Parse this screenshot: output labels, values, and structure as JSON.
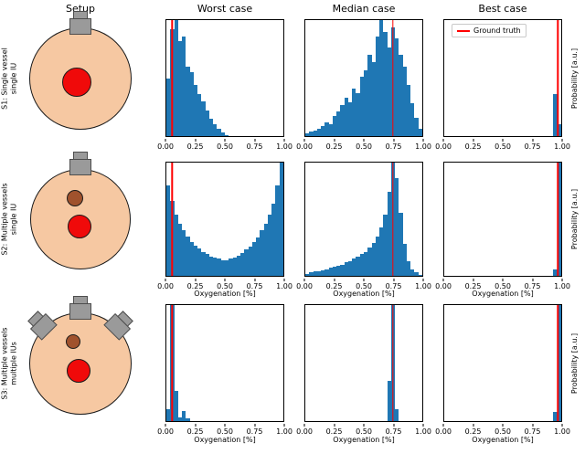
{
  "figure": {
    "column_headers": [
      "Setup",
      "Worst case",
      "Median case",
      "Best case"
    ],
    "row_labels": [
      "S1: Single vessel\nsingle IU",
      "S2: Multiple vessels\nsingle IU",
      "S3: Multiple vessels\nmultiple IUs"
    ],
    "xlabel": "Oxygenation [%]",
    "ylabel_right": "Probability [a.u.]",
    "legend_label": "Ground truth",
    "x_ticks": [
      "0.00",
      "0.25",
      "0.50",
      "0.75",
      "1.00"
    ],
    "colors": {
      "bar": "#1f77b4",
      "ground_truth": "#ff0000",
      "phantom_fill": "#f6c8a2",
      "vessel_main": "#f00a0a",
      "vessel_secondary": "#a0522d",
      "transducer": "#9a9a9a"
    }
  },
  "chart_data": [
    {
      "panel": "S1-worst",
      "row": "S1: Single vessel single IU",
      "case": "Worst case",
      "type": "bar",
      "xlabel": "Oxygenation [%]",
      "ylabel": "Probability [a.u.]",
      "x_min": 0,
      "x_max": 1,
      "bins": 30,
      "ground_truth": 0.05,
      "values": [
        0.5,
        0.92,
        1.0,
        0.82,
        0.86,
        0.6,
        0.55,
        0.44,
        0.36,
        0.3,
        0.22,
        0.15,
        0.1,
        0.06,
        0.03,
        0.01,
        0,
        0,
        0,
        0,
        0,
        0,
        0,
        0,
        0,
        0,
        0,
        0,
        0,
        0
      ]
    },
    {
      "panel": "S1-median",
      "row": "S1: Single vessel single IU",
      "case": "Median case",
      "type": "bar",
      "xlabel": "Oxygenation [%]",
      "ylabel": "Probability [a.u.]",
      "x_min": 0,
      "x_max": 1,
      "bins": 30,
      "ground_truth": 0.75,
      "values": [
        0.02,
        0.04,
        0.05,
        0.06,
        0.09,
        0.12,
        0.1,
        0.17,
        0.21,
        0.27,
        0.33,
        0.29,
        0.41,
        0.37,
        0.51,
        0.57,
        0.7,
        0.64,
        0.86,
        1.0,
        0.9,
        0.76,
        0.94,
        0.84,
        0.7,
        0.6,
        0.44,
        0.28,
        0.16,
        0.06
      ]
    },
    {
      "panel": "S1-best",
      "row": "S1: Single vessel single IU",
      "case": "Best case",
      "type": "bar",
      "xlabel": "Oxygenation [%]",
      "ylabel": "Probability [a.u.]",
      "x_min": 0,
      "x_max": 1,
      "bins": 30,
      "ground_truth": 0.97,
      "values": [
        0,
        0,
        0,
        0,
        0,
        0,
        0,
        0,
        0,
        0,
        0,
        0,
        0,
        0,
        0,
        0,
        0,
        0,
        0,
        0,
        0,
        0,
        0,
        0,
        0,
        0,
        0,
        0,
        0.36,
        0.1
      ]
    },
    {
      "panel": "S2-worst",
      "row": "S2: Multiple vessels single IU",
      "case": "Worst case",
      "type": "bar",
      "xlabel": "Oxygenation [%]",
      "ylabel": "Probability [a.u.]",
      "x_min": 0,
      "x_max": 1,
      "bins": 30,
      "ground_truth": 0.05,
      "values": [
        0.8,
        0.66,
        0.54,
        0.46,
        0.4,
        0.35,
        0.3,
        0.27,
        0.24,
        0.21,
        0.19,
        0.17,
        0.16,
        0.15,
        0.14,
        0.14,
        0.15,
        0.16,
        0.18,
        0.2,
        0.23,
        0.26,
        0.3,
        0.34,
        0.4,
        0.46,
        0.54,
        0.64,
        0.8,
        1.0
      ]
    },
    {
      "panel": "S2-median",
      "row": "S2: Multiple vessels single IU",
      "case": "Median case",
      "type": "bar",
      "xlabel": "Oxygenation [%]",
      "ylabel": "Probability [a.u.]",
      "x_min": 0,
      "x_max": 1,
      "bins": 30,
      "ground_truth": 0.75,
      "values": [
        0.02,
        0.03,
        0.04,
        0.04,
        0.05,
        0.06,
        0.07,
        0.08,
        0.09,
        0.1,
        0.12,
        0.13,
        0.15,
        0.17,
        0.19,
        0.21,
        0.25,
        0.29,
        0.35,
        0.43,
        0.54,
        0.74,
        1.0,
        0.86,
        0.56,
        0.28,
        0.13,
        0.06,
        0.03,
        0.01
      ]
    },
    {
      "panel": "S2-best",
      "row": "S2: Multiple vessels single IU",
      "case": "Best case",
      "type": "bar",
      "xlabel": "Oxygenation [%]",
      "ylabel": "Probability [a.u.]",
      "x_min": 0,
      "x_max": 1,
      "bins": 30,
      "ground_truth": 0.97,
      "values": [
        0,
        0,
        0,
        0,
        0,
        0,
        0,
        0,
        0,
        0,
        0,
        0,
        0,
        0,
        0,
        0,
        0,
        0,
        0,
        0,
        0,
        0,
        0,
        0,
        0,
        0,
        0,
        0,
        0.06,
        1.0
      ]
    },
    {
      "panel": "S3-worst",
      "row": "S3: Multiple vessels multiple IUs",
      "case": "Worst case",
      "type": "bar",
      "xlabel": "Oxygenation [%]",
      "ylabel": "Probability [a.u.]",
      "x_min": 0,
      "x_max": 1,
      "bins": 30,
      "ground_truth": 0.05,
      "values": [
        0.1,
        1.0,
        0.26,
        0.03,
        0.09,
        0.02,
        0,
        0,
        0,
        0,
        0,
        0,
        0,
        0,
        0,
        0,
        0,
        0,
        0,
        0,
        0,
        0,
        0,
        0,
        0,
        0,
        0,
        0,
        0,
        0
      ]
    },
    {
      "panel": "S3-median",
      "row": "S3: Multiple vessels multiple IUs",
      "case": "Median case",
      "type": "bar",
      "xlabel": "Oxygenation [%]",
      "ylabel": "Probability [a.u.]",
      "x_min": 0,
      "x_max": 1,
      "bins": 30,
      "ground_truth": 0.75,
      "values": [
        0,
        0,
        0,
        0,
        0,
        0,
        0,
        0,
        0,
        0,
        0,
        0,
        0,
        0,
        0,
        0,
        0,
        0,
        0,
        0,
        0,
        0.35,
        1.0,
        0.1,
        0,
        0,
        0,
        0,
        0,
        0
      ]
    },
    {
      "panel": "S3-best",
      "row": "S3: Multiple vessels multiple IUs",
      "case": "Best case",
      "type": "bar",
      "xlabel": "Oxygenation [%]",
      "ylabel": "Probability [a.u.]",
      "x_min": 0,
      "x_max": 1,
      "bins": 30,
      "ground_truth": 0.97,
      "values": [
        0,
        0,
        0,
        0,
        0,
        0,
        0,
        0,
        0,
        0,
        0,
        0,
        0,
        0,
        0,
        0,
        0,
        0,
        0,
        0,
        0,
        0,
        0,
        0,
        0,
        0,
        0,
        0,
        0.08,
        1.0
      ]
    }
  ]
}
